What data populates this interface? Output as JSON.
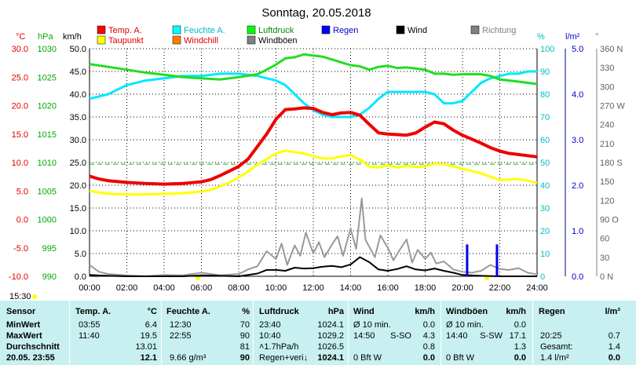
{
  "chart_data": {
    "type": "line",
    "title": "Sonntag, 20.05.2018",
    "legend": [
      {
        "name": "Temp. A.",
        "color": "#ff0000"
      },
      {
        "name": "Feuchte A.",
        "color": "#00ffff"
      },
      {
        "name": "Luftdruck",
        "color": "#00ff00"
      },
      {
        "name": "Regen",
        "color": "#0000ff"
      },
      {
        "name": "Wind",
        "color": "#000000"
      },
      {
        "name": "Richtung",
        "color": "#808080"
      },
      {
        "name": "Taupunkt",
        "color": "#ffff00"
      },
      {
        "name": "Windchill",
        "color": "#ff8000"
      },
      {
        "name": "Windböen",
        "color": "#808080"
      }
    ],
    "axes": {
      "temp": {
        "unit": "°C",
        "ticks": [
          "30.0",
          "25.0",
          "20.0",
          "15.0",
          "10.0",
          "5.0",
          "0.0",
          "-5.0",
          "-10.0"
        ],
        "range": [
          -10,
          30
        ]
      },
      "pressure": {
        "unit": "hPa",
        "ticks": [
          "1030",
          "1025",
          "1020",
          "1015",
          "1010",
          "1005",
          "1000",
          "995",
          "990"
        ],
        "range": [
          990,
          1030
        ]
      },
      "wind": {
        "unit": "km/h",
        "ticks": [
          "50.0",
          "45.0",
          "40.0",
          "35.0",
          "30.0",
          "25.0",
          "20.0",
          "15.0",
          "10.0",
          "5.0",
          "0.0"
        ],
        "range": [
          0,
          50
        ]
      },
      "humidity": {
        "unit": "%",
        "ticks": [
          "100",
          "90",
          "80",
          "70",
          "60",
          "50",
          "40",
          "30",
          "20",
          "10",
          "0"
        ],
        "range": [
          0,
          100
        ]
      },
      "rain": {
        "unit": "l/m²",
        "ticks": [
          "5.0",
          "4.0",
          "3.0",
          "2.0",
          "1.0",
          "0.0"
        ],
        "range": [
          0,
          5
        ]
      },
      "direction": {
        "unit": "°",
        "ticks": [
          "360 N",
          "330",
          "300",
          "270 W",
          "240",
          "210",
          "180 S",
          "150",
          "120",
          "90 O",
          "60",
          "30",
          "0 N"
        ],
        "range": [
          0,
          360
        ]
      },
      "x": {
        "ticks": [
          "00:00",
          "02:00",
          "04:00",
          "06:00",
          "08:00",
          "10:00",
          "12:00",
          "14:00",
          "16:00",
          "18:00",
          "20:00",
          "22:00",
          "24:00"
        ],
        "range": [
          0,
          24
        ]
      }
    },
    "extra_label": "15:30",
    "reference_line": {
      "series": "Taupunkt",
      "value": 9.7,
      "color": "#00c000"
    },
    "series": [
      {
        "name": "Temp. A.",
        "axis": "temp",
        "x": [
          0,
          0.5,
          1,
          2,
          3,
          4,
          5,
          6,
          6.5,
          7,
          7.5,
          8,
          8.5,
          9,
          9.5,
          10,
          10.5,
          11,
          11.5,
          12,
          12.5,
          13,
          13.5,
          14,
          14.5,
          15,
          15.5,
          16,
          16.5,
          17,
          17.5,
          18,
          18.5,
          19,
          19.5,
          20,
          20.5,
          21,
          21.5,
          22,
          22.5,
          23,
          23.5,
          24
        ],
        "y": [
          7.6,
          7.1,
          6.8,
          6.5,
          6.3,
          6.2,
          6.3,
          6.6,
          7.0,
          7.7,
          8.5,
          9.3,
          10.6,
          12.8,
          15.0,
          17.6,
          19.3,
          19.4,
          19.6,
          19.5,
          18.8,
          18.4,
          18.7,
          18.8,
          18.3,
          16.7,
          15.2,
          15.0,
          14.9,
          14.8,
          15.2,
          16.2,
          17.1,
          16.8,
          15.7,
          14.8,
          14.1,
          13.4,
          12.6,
          12.0,
          11.6,
          11.4,
          11.2,
          11.0
        ]
      },
      {
        "name": "Taupunkt",
        "axis": "temp",
        "x": [
          0,
          1,
          2,
          3,
          4,
          5,
          6,
          6.5,
          7,
          7.5,
          8,
          8.5,
          9,
          9.5,
          10,
          10.5,
          11,
          11.5,
          12,
          12.5,
          13,
          13.5,
          14,
          14.5,
          15,
          15.5,
          16,
          16.5,
          17,
          17.5,
          18,
          18.5,
          19,
          19.5,
          20,
          20.5,
          21,
          21.5,
          22,
          22.5,
          23,
          23.5,
          24
        ],
        "y": [
          5.0,
          4.5,
          4.4,
          4.4,
          4.5,
          4.6,
          4.9,
          5.2,
          5.8,
          6.5,
          7.4,
          8.4,
          9.6,
          10.6,
          11.6,
          12.1,
          11.8,
          11.6,
          11.1,
          10.7,
          10.7,
          11.1,
          11.3,
          10.5,
          9.3,
          9.1,
          9.5,
          9.1,
          9.4,
          9.2,
          9.3,
          9.8,
          9.7,
          9.3,
          8.9,
          8.5,
          8.1,
          7.5,
          6.9,
          7.0,
          7.1,
          6.8,
          6.4
        ]
      },
      {
        "name": "Feuchte A.",
        "axis": "humidity",
        "x": [
          0,
          0.5,
          1,
          2,
          3,
          4,
          5,
          6,
          7,
          8,
          9,
          9.5,
          10,
          10.5,
          11,
          11.5,
          12,
          12.5,
          13,
          13.5,
          14,
          14.5,
          15,
          15.5,
          16,
          16.5,
          17,
          17.5,
          18,
          18.5,
          19,
          19.5,
          20,
          20.5,
          21,
          21.5,
          22,
          22.5,
          23,
          23.5,
          24
        ],
        "y": [
          78,
          79,
          80,
          84,
          86,
          87,
          88,
          88,
          89,
          89,
          88,
          87,
          86,
          84,
          80,
          76,
          73,
          71,
          70,
          70,
          70,
          71,
          74,
          78,
          81,
          81,
          81,
          81,
          81,
          80,
          76,
          76,
          77,
          81,
          85,
          87,
          88,
          89,
          89,
          90,
          90
        ]
      },
      {
        "name": "Luftdruck",
        "axis": "pressure",
        "x": [
          0,
          1,
          2,
          3,
          4,
          5,
          6,
          7,
          8,
          9,
          9.5,
          10,
          10.5,
          11,
          11.5,
          12,
          12.5,
          13,
          13.5,
          14,
          14.5,
          15,
          15.5,
          16,
          16.5,
          17,
          17.5,
          18,
          18.5,
          19,
          19.5,
          20,
          20.5,
          21,
          21.5,
          22,
          22.5,
          23,
          23.5,
          24
        ],
        "y": [
          1027.3,
          1026.8,
          1026.3,
          1025.8,
          1025.4,
          1025.0,
          1024.8,
          1024.6,
          1025.0,
          1025.5,
          1026.3,
          1027.2,
          1028.3,
          1028.5,
          1029.0,
          1028.8,
          1028.6,
          1028.1,
          1027.6,
          1027.1,
          1026.9,
          1026.3,
          1026.8,
          1027.0,
          1026.6,
          1026.7,
          1026.5,
          1026.3,
          1025.6,
          1025.6,
          1025.4,
          1025.5,
          1025.5,
          1025.5,
          1025.2,
          1024.6,
          1024.4,
          1024.2,
          1024.0,
          1023.8
        ]
      },
      {
        "name": "Wind",
        "axis": "wind",
        "x": [
          0,
          1,
          2,
          3,
          4,
          5,
          6,
          7,
          8,
          8.5,
          9,
          9.5,
          10,
          10.5,
          11,
          11.5,
          12,
          12.5,
          13,
          13.5,
          14,
          14.5,
          15,
          15.5,
          16,
          16.5,
          17,
          17.5,
          18,
          18.5,
          19,
          19.5,
          20,
          21,
          22,
          23,
          24
        ],
        "y": [
          0.3,
          0.1,
          0,
          0,
          0,
          0,
          0.2,
          0.1,
          0,
          0.3,
          0.6,
          1.4,
          1.4,
          1.2,
          1.9,
          1.7,
          1.8,
          2.1,
          2.3,
          2.0,
          2.6,
          4.2,
          3.1,
          1.5,
          1.2,
          1.6,
          2.2,
          1.5,
          1.3,
          1.7,
          1.2,
          0.8,
          0.3,
          0.1,
          0,
          0,
          0
        ]
      },
      {
        "name": "Windböen",
        "axis": "wind",
        "x": [
          0,
          0.5,
          1,
          2,
          3,
          4,
          5,
          6,
          7,
          8,
          8.5,
          9,
          9.5,
          10,
          10.3,
          10.6,
          11,
          11.3,
          11.6,
          12,
          12.3,
          12.6,
          13,
          13.3,
          13.6,
          14,
          14.3,
          14.6,
          14.8,
          15,
          15.3,
          15.6,
          16,
          16.3,
          16.6,
          17,
          17.3,
          17.6,
          18,
          18.3,
          18.6,
          19,
          19.5,
          20,
          20.5,
          21,
          21.5,
          22,
          22.5,
          23,
          23.5,
          24
        ],
        "y": [
          2.5,
          1.0,
          0.5,
          0.2,
          0,
          0.3,
          0.2,
          0.8,
          0.2,
          0.5,
          1.5,
          2.2,
          5.5,
          3.8,
          7.2,
          2.5,
          6.8,
          4.5,
          9.6,
          5.0,
          7.5,
          4.2,
          7.0,
          8.8,
          4.5,
          10.5,
          6.0,
          17.1,
          8.0,
          6.5,
          4.2,
          9.0,
          6.2,
          3.5,
          5.6,
          8.1,
          3.0,
          5.8,
          3.8,
          5.2,
          2.8,
          3.3,
          1.5,
          1.0,
          0.8,
          1.2,
          2.5,
          1.6,
          1.4,
          1.8,
          0.8,
          0.4
        ]
      },
      {
        "name": "Regen",
        "axis": "rain",
        "type": "bar",
        "x": [
          20.25,
          21.85
        ],
        "y": [
          0.7,
          0.7
        ]
      }
    ]
  },
  "table": {
    "headers": {
      "sensor": "Sensor",
      "temp": "Temp. A.",
      "temp_unit": "°C",
      "hum": "Feuchte A.",
      "hum_unit": "%",
      "press": "Luftdruck",
      "press_unit": "hPa",
      "wind": "Wind",
      "wind_unit": "km/h",
      "gust": "Windböen",
      "gust_unit": "km/h",
      "rain": "Regen",
      "rain_unit": "l/m²"
    },
    "rows": [
      {
        "label": "MinWert",
        "temp_time": "03:55",
        "temp_val": "6.4",
        "hum_time": "12:30",
        "hum_val": "70",
        "press_time": "23:40",
        "press_val": "1024.1",
        "wind_time": "Ø 10 min.",
        "wind_dir": "",
        "wind_val": "0.0",
        "gust_time": "Ø 10 min.",
        "gust_dir": "",
        "gust_val": "0.0",
        "rain_label": "",
        "rain_val": ""
      },
      {
        "label": "MaxWert",
        "temp_time": "11:40",
        "temp_val": "19.5",
        "hum_time": "22:55",
        "hum_val": "90",
        "press_time": "10:40",
        "press_val": "1029.2",
        "wind_time": "14:50",
        "wind_dir": "S-SO",
        "wind_val": "4.3",
        "gust_time": "14:40",
        "gust_dir": "S-SW",
        "gust_val": "17.1",
        "rain_label": "20:25",
        "rain_val": "0.7"
      },
      {
        "label": "Durchschnitt",
        "temp_time": "",
        "temp_val": "13.01",
        "hum_time": "",
        "hum_val": "81",
        "press_time": "˄1.7hPa/h",
        "press_val": "1026.5",
        "wind_time": "",
        "wind_dir": "",
        "wind_val": "0.8",
        "gust_time": "",
        "gust_dir": "",
        "gust_val": "1.3",
        "rain_label": "Gesamt:",
        "rain_val": "1.4"
      },
      {
        "label": "20.05. 23:55",
        "temp_time": "",
        "temp_val": "12.1",
        "hum_time": "9.66 g/m³",
        "hum_val": "90",
        "press_time": "Regen+veri↓",
        "press_val": "1024.1",
        "wind_time": "0 Bft W",
        "wind_dir": "",
        "wind_val": "0.0",
        "gust_time": "0 Bft W",
        "gust_dir": "",
        "gust_val": "0.0",
        "rain_label": "1.4 l/m²",
        "rain_val": "0.0"
      }
    ]
  }
}
